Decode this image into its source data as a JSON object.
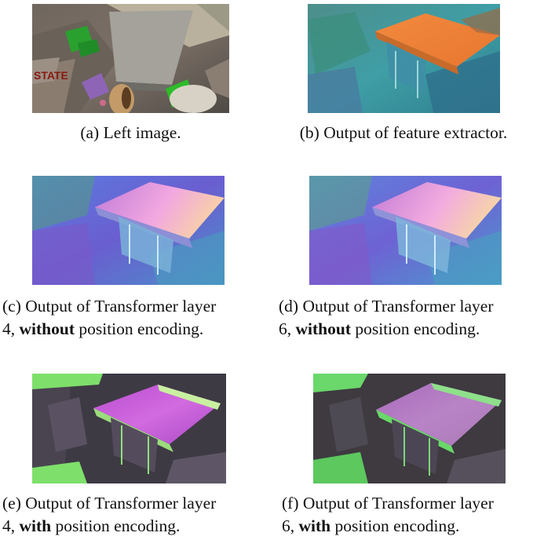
{
  "figure": {
    "a": {
      "label": "(a) Left image."
    },
    "b": {
      "label": "(b) Output of feature extractor."
    },
    "c": {
      "line1": "(c) Output of Transformer layer",
      "num": "4,",
      "bold": "without",
      "rest": "position encoding."
    },
    "d": {
      "line1": "(d) Output of Transformer layer",
      "num": "6,",
      "bold": "without",
      "rest": "position encoding."
    },
    "e": {
      "line1": "(e) Output of Transformer layer",
      "num": "4,",
      "bold": "with",
      "rest": "position encoding."
    },
    "f": {
      "line1": "(f) Output of Transformer layer",
      "num": "6,",
      "bold": "with",
      "rest": "position encoding."
    }
  }
}
